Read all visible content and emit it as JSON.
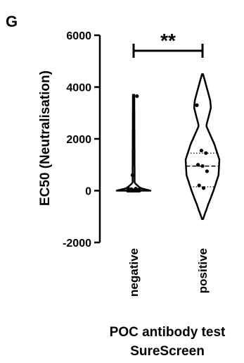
{
  "chart_data": {
    "type": "violin",
    "panel_label": "G",
    "ylabel": "EC50 (Neutralisation)",
    "xlabel_lines": [
      "POC antibody test",
      "SureScreen"
    ],
    "categories": [
      "negative",
      "positive"
    ],
    "ylim": [
      -2000,
      6000
    ],
    "yticks": [
      -2000,
      0,
      2000,
      4000,
      6000
    ],
    "significance": "**",
    "groups": [
      {
        "name": "negative",
        "range": [
          0,
          3700
        ],
        "median": 0,
        "quartiles": [
          0,
          50
        ],
        "points": [
          0,
          0,
          0,
          0,
          0,
          0,
          0,
          0,
          0,
          0,
          0,
          0,
          0,
          0,
          0,
          0,
          20,
          30,
          40,
          50,
          60,
          80,
          100,
          600,
          3650
        ],
        "density": [
          [
            -150,
            0.3
          ],
          [
            0,
            1.0
          ],
          [
            100,
            0.4
          ],
          [
            300,
            0.06
          ],
          [
            3700,
            0.04
          ]
        ]
      },
      {
        "name": "positive",
        "range": [
          -1100,
          4500
        ],
        "median": 950,
        "quartiles": [
          150,
          1450
        ],
        "points": [
          3300,
          1550,
          1450,
          1000,
          950,
          750,
          200,
          100
        ],
        "density": [
          [
            -1100,
            0.03
          ],
          [
            -600,
            0.3
          ],
          [
            0,
            0.65
          ],
          [
            600,
            0.95
          ],
          [
            1200,
            1.0
          ],
          [
            1800,
            0.7
          ],
          [
            2500,
            0.22
          ],
          [
            3200,
            0.5
          ],
          [
            3500,
            0.45
          ],
          [
            4100,
            0.2
          ],
          [
            4500,
            0.03
          ]
        ]
      }
    ]
  }
}
